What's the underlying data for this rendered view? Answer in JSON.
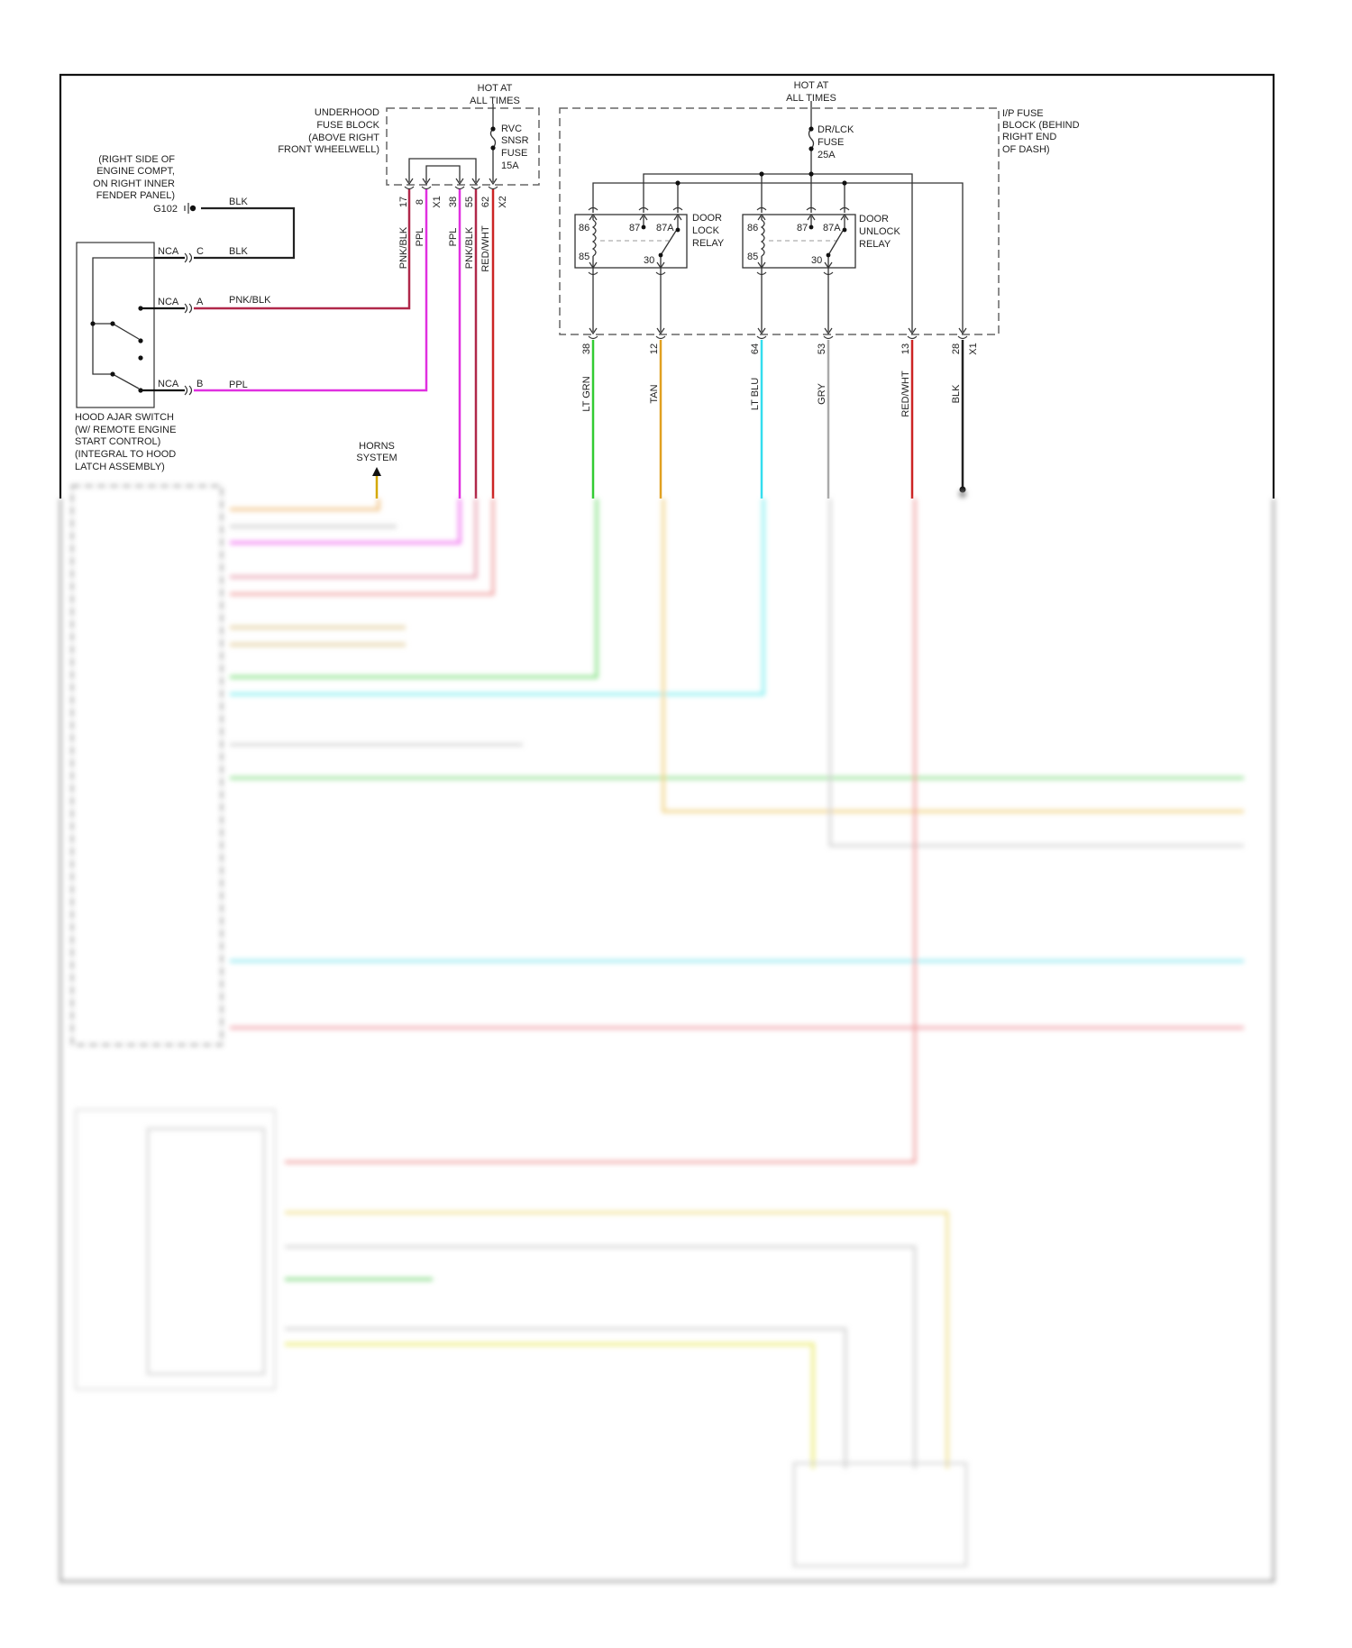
{
  "colors": {
    "frame": "#111111",
    "pnk_blk": "#b0284a",
    "ppl": "#e030e0",
    "red_wht": "#cc2424",
    "blk": "#222222",
    "lt_grn": "#33cc33",
    "tan": "#e0a020",
    "lt_blu": "#33ddee",
    "gry": "#aaaaaa",
    "horns": "#d4a800"
  },
  "underhood_fuse_block": {
    "hot": [
      "HOT AT",
      "ALL TIMES"
    ],
    "name": [
      "UNDERHOOD",
      "FUSE BLOCK",
      "(ABOVE RIGHT",
      "FRONT WHEELWELL)"
    ],
    "fuse": [
      "RVC",
      "SNSR",
      "FUSE",
      "15A"
    ],
    "pins": [
      "17",
      "8",
      "X1",
      "38",
      "55",
      "62",
      "X2"
    ],
    "wires": [
      "PNK/BLK",
      "PPL",
      "PPL",
      "PNK/BLK",
      "RED/WHT"
    ]
  },
  "ground": {
    "location": [
      "(RIGHT SIDE OF",
      "ENGINE COMPT,",
      "ON RIGHT INNER",
      "FENDER PANEL)"
    ],
    "id": "G102",
    "wire": "BLK"
  },
  "hood_switch": {
    "connector": "NCA",
    "pins": [
      "C",
      "A",
      "B"
    ],
    "wires": [
      "BLK",
      "PNK/BLK",
      "PPL"
    ],
    "name": [
      "HOOD AJAR SWITCH",
      "(W/ REMOTE ENGINE",
      "START CONTROL)",
      "(INTEGRAL TO HOOD",
      "LATCH ASSEMBLY)"
    ]
  },
  "horns": [
    "HORNS",
    "SYSTEM"
  ],
  "ip_fuse_block": {
    "hot": [
      "HOT AT",
      "ALL TIMES"
    ],
    "name": [
      "I/P FUSE",
      "BLOCK (BEHIND",
      "RIGHT END",
      "OF DASH)"
    ],
    "fuse": [
      "DR/LCK",
      "FUSE",
      "25A"
    ],
    "connector": "X1",
    "relays": [
      {
        "name": [
          "DOOR",
          "LOCK",
          "RELAY"
        ],
        "pins": [
          "86",
          "87",
          "87A",
          "85",
          "30"
        ]
      },
      {
        "name": [
          "DOOR",
          "UNLOCK",
          "RELAY"
        ],
        "pins": [
          "86",
          "87",
          "87A",
          "85",
          "30"
        ]
      }
    ],
    "outputs": [
      {
        "pin": "38",
        "wire": "LT GRN",
        "color": "#33cc33"
      },
      {
        "pin": "12",
        "wire": "TAN",
        "color": "#e0a020"
      },
      {
        "pin": "64",
        "wire": "LT BLU",
        "color": "#33ddee"
      },
      {
        "pin": "53",
        "wire": "GRY",
        "color": "#aaaaaa"
      },
      {
        "pin": "13",
        "wire": "RED/WHT",
        "color": "#cc2424"
      },
      {
        "pin": "28",
        "wire": "BLK",
        "color": "#222222"
      }
    ]
  }
}
